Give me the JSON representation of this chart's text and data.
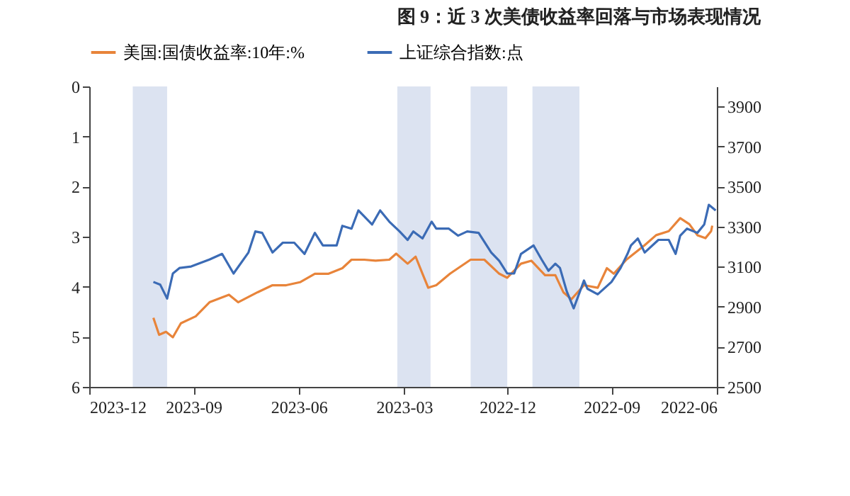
{
  "chart_data": {
    "type": "line",
    "title": "图 9：近 3 次美债收益率回落与市场表现情况",
    "xlim": [
      "2023-12",
      "2022-06"
    ],
    "xticks": [
      "2023-12",
      "2023-09",
      "2023-06",
      "2023-03",
      "2022-12",
      "2022-09",
      "2022-06"
    ],
    "ylim": [
      6,
      0
    ],
    "yticks": [
      0,
      1,
      2,
      3,
      4,
      5,
      6
    ],
    "y2lim": [
      2500,
      4000
    ],
    "y2ticks": [
      2500,
      2700,
      2900,
      3100,
      3300,
      3500,
      3700,
      3900
    ],
    "legend": "top",
    "grid": false,
    "bands": [
      {
        "axis": "x",
        "from": "2023-09-24",
        "to": "2023-10-24",
        "color": "#dce3f1"
      },
      {
        "axis": "x",
        "from": "2023-02-06",
        "to": "2023-03-07",
        "color": "#dce3f1"
      },
      {
        "axis": "x",
        "from": "2022-12-01",
        "to": "2023-01-02",
        "color": "#dce3f1"
      },
      {
        "axis": "x",
        "from": "2022-09-29",
        "to": "2022-11-09",
        "color": "#dce3f1"
      }
    ],
    "series": [
      {
        "name": "美国:国债收益率:10年:%",
        "color": "#e8843a",
        "x": [
          "2022-06-05",
          "2022-06-06",
          "2022-06-11",
          "2022-06-18",
          "2022-06-25",
          "2022-07-03",
          "2022-07-13",
          "2022-07-24",
          "2022-08-03",
          "2022-08-19",
          "2022-08-30",
          "2022-09-05",
          "2022-09-13",
          "2022-09-25",
          "2022-10-06",
          "2022-10-13",
          "2022-10-20",
          "2022-10-29",
          "2022-11-10",
          "2022-11-19",
          "2022-12-01",
          "2022-12-08",
          "2022-12-21",
          "2023-01-02",
          "2023-01-20",
          "2023-02-01",
          "2023-02-08",
          "2023-02-13",
          "2023-02-19",
          "2023-02-26",
          "2023-03-08",
          "2023-03-14",
          "2023-03-26",
          "2023-04-05",
          "2023-04-16",
          "2023-04-24",
          "2023-05-06",
          "2023-05-18",
          "2023-05-31",
          "2023-06-12",
          "2023-06-24",
          "2023-07-07",
          "2023-07-24",
          "2023-08-01",
          "2023-08-18",
          "2023-08-30",
          "2023-09-12",
          "2023-09-19",
          "2023-09-25",
          "2023-10-01",
          "2023-10-06"
        ],
        "values": [
          2.78,
          2.89,
          3.03,
          2.97,
          2.75,
          2.63,
          2.89,
          2.97,
          3.17,
          3.46,
          3.74,
          3.63,
          4.02,
          3.97,
          4.25,
          4.11,
          3.77,
          3.77,
          3.48,
          3.54,
          3.82,
          3.74,
          3.46,
          3.46,
          3.74,
          3.97,
          4.02,
          3.74,
          3.4,
          3.54,
          3.34,
          3.46,
          3.48,
          3.46,
          3.46,
          3.63,
          3.74,
          3.74,
          3.91,
          3.97,
          3.97,
          4.11,
          4.31,
          4.16,
          4.31,
          4.59,
          4.73,
          5.01,
          4.9,
          4.96,
          4.62
        ]
      },
      {
        "name": "上证综合指数:点",
        "color": "#3b6bb5",
        "axis": "y2",
        "x": [
          "2022-06-02",
          "2022-06-08",
          "2022-06-12",
          "2022-06-18",
          "2022-06-27",
          "2022-07-03",
          "2022-07-07",
          "2022-07-13",
          "2022-07-22",
          "2022-08-03",
          "2022-08-09",
          "2022-08-15",
          "2022-08-18",
          "2022-08-24",
          "2022-09-01",
          "2022-09-13",
          "2022-09-22",
          "2022-09-25",
          "2022-10-04",
          "2022-10-10",
          "2022-10-16",
          "2022-10-20",
          "2022-10-26",
          "2022-11-01",
          "2022-11-08",
          "2022-11-19",
          "2022-11-25",
          "2022-12-01",
          "2022-12-08",
          "2022-12-15",
          "2022-12-26",
          "2023-01-05",
          "2023-01-13",
          "2023-01-21",
          "2023-02-01",
          "2023-02-05",
          "2023-02-13",
          "2023-02-21",
          "2023-02-26",
          "2023-03-05",
          "2023-03-14",
          "2023-03-22",
          "2023-03-29",
          "2023-04-04",
          "2023-04-10",
          "2023-04-16",
          "2023-04-24",
          "2023-04-29",
          "2023-05-11",
          "2023-05-18",
          "2023-05-27",
          "2023-06-05",
          "2023-06-15",
          "2023-06-24",
          "2023-07-03",
          "2023-07-09",
          "2023-07-15",
          "2023-07-28",
          "2023-08-07",
          "2023-08-18",
          "2023-09-03",
          "2023-09-13",
          "2023-09-19",
          "2023-09-24",
          "2023-09-30",
          "2023-10-06"
        ],
        "values": [
          3381,
          3409,
          3311,
          3269,
          3290,
          3255,
          3164,
          3234,
          3234,
          3171,
          3241,
          3206,
          3164,
          3094,
          3024,
          2962,
          2990,
          3031,
          2892,
          2976,
          3094,
          3115,
          3080,
          3136,
          3206,
          3164,
          3066,
          3066,
          3129,
          3171,
          3269,
          3276,
          3255,
          3290,
          3290,
          3325,
          3241,
          3276,
          3234,
          3276,
          3325,
          3381,
          3311,
          3346,
          3381,
          3290,
          3304,
          3206,
          3206,
          3269,
          3164,
          3220,
          3220,
          3171,
          3269,
          3276,
          3171,
          3066,
          3164,
          3136,
          3101,
          3094,
          3066,
          2941,
          3010,
          3024
        ]
      }
    ]
  }
}
